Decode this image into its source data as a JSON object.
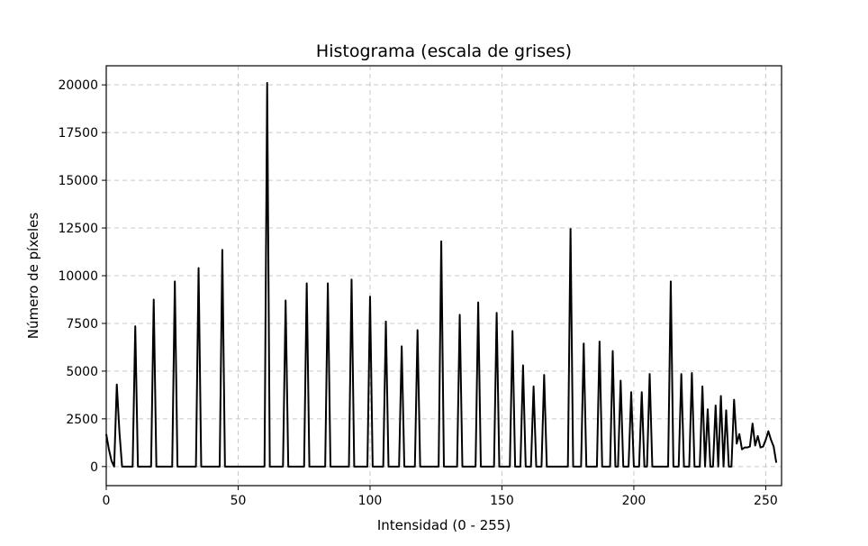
{
  "chart_data": {
    "type": "line",
    "title": "Histograma (escala de grises)",
    "xlabel": "Intensidad (0 - 255)",
    "ylabel": "Número de píxeles",
    "xlim": [
      0,
      256
    ],
    "ylim": [
      -1000,
      21000
    ],
    "x_ticks": [
      0,
      50,
      100,
      150,
      200,
      250
    ],
    "y_ticks": [
      0,
      2500,
      5000,
      7500,
      10000,
      12500,
      15000,
      17500,
      20000
    ],
    "grid": true,
    "line_color": "#000000",
    "grid_color": "#c8c8c8",
    "series": [
      {
        "points": [
          [
            0,
            1700
          ],
          [
            1,
            900
          ],
          [
            2,
            300
          ],
          [
            3,
            0
          ],
          [
            4,
            4300
          ],
          [
            5,
            1800
          ],
          [
            6,
            0
          ],
          [
            10,
            0
          ],
          [
            11,
            7350
          ],
          [
            12,
            0
          ],
          [
            17,
            0
          ],
          [
            18,
            8750
          ],
          [
            19,
            0
          ],
          [
            25,
            0
          ],
          [
            26,
            9700
          ],
          [
            27,
            0
          ],
          [
            34,
            0
          ],
          [
            35,
            10400
          ],
          [
            36,
            0
          ],
          [
            43,
            0
          ],
          [
            44,
            11350
          ],
          [
            45,
            0
          ],
          [
            60,
            0
          ],
          [
            61,
            20100
          ],
          [
            62,
            0
          ],
          [
            67,
            0
          ],
          [
            68,
            8700
          ],
          [
            69,
            0
          ],
          [
            75,
            0
          ],
          [
            76,
            9600
          ],
          [
            77,
            0
          ],
          [
            83,
            0
          ],
          [
            84,
            9600
          ],
          [
            85,
            0
          ],
          [
            92,
            0
          ],
          [
            93,
            9800
          ],
          [
            94,
            0
          ],
          [
            99,
            0
          ],
          [
            100,
            8900
          ],
          [
            101,
            0
          ],
          [
            105,
            0
          ],
          [
            106,
            7600
          ],
          [
            107,
            0
          ],
          [
            111,
            0
          ],
          [
            112,
            6300
          ],
          [
            113,
            0
          ],
          [
            117,
            0
          ],
          [
            118,
            7150
          ],
          [
            119,
            0
          ],
          [
            126,
            0
          ],
          [
            127,
            11800
          ],
          [
            128,
            0
          ],
          [
            133,
            0
          ],
          [
            134,
            7950
          ],
          [
            135,
            0
          ],
          [
            140,
            0
          ],
          [
            141,
            8600
          ],
          [
            142,
            0
          ],
          [
            147,
            0
          ],
          [
            148,
            8050
          ],
          [
            149,
            0
          ],
          [
            153,
            0
          ],
          [
            154,
            7100
          ],
          [
            155,
            0
          ],
          [
            157,
            0
          ],
          [
            158,
            5300
          ],
          [
            159,
            0
          ],
          [
            161,
            0
          ],
          [
            162,
            4200
          ],
          [
            163,
            0
          ],
          [
            165,
            0
          ],
          [
            166,
            4800
          ],
          [
            167,
            0
          ],
          [
            175,
            0
          ],
          [
            176,
            12450
          ],
          [
            177,
            0
          ],
          [
            180,
            0
          ],
          [
            181,
            6450
          ],
          [
            182,
            0
          ],
          [
            186,
            0
          ],
          [
            187,
            6550
          ],
          [
            188,
            0
          ],
          [
            191,
            0
          ],
          [
            192,
            6050
          ],
          [
            193,
            0
          ],
          [
            194,
            0
          ],
          [
            195,
            4500
          ],
          [
            196,
            0
          ],
          [
            198,
            0
          ],
          [
            199,
            3900
          ],
          [
            200,
            0
          ],
          [
            202,
            0
          ],
          [
            203,
            3900
          ],
          [
            204,
            0
          ],
          [
            205,
            0
          ],
          [
            206,
            4850
          ],
          [
            207,
            0
          ],
          [
            213,
            0
          ],
          [
            214,
            9700
          ],
          [
            215,
            0
          ],
          [
            217,
            0
          ],
          [
            218,
            4850
          ],
          [
            219,
            0
          ],
          [
            221,
            0
          ],
          [
            222,
            4900
          ],
          [
            223,
            0
          ],
          [
            225,
            0
          ],
          [
            226,
            4200
          ],
          [
            227,
            0
          ],
          [
            228,
            3000
          ],
          [
            229,
            0
          ],
          [
            230,
            0
          ],
          [
            231,
            3200
          ],
          [
            232,
            0
          ],
          [
            233,
            3700
          ],
          [
            234,
            0
          ],
          [
            235,
            2950
          ],
          [
            236,
            0
          ],
          [
            237,
            0
          ],
          [
            238,
            3500
          ],
          [
            239,
            1200
          ],
          [
            240,
            1700
          ],
          [
            241,
            900
          ],
          [
            242,
            1000
          ],
          [
            243,
            1000
          ],
          [
            244,
            1050
          ],
          [
            245,
            2250
          ],
          [
            246,
            1100
          ],
          [
            247,
            1600
          ],
          [
            248,
            1000
          ],
          [
            249,
            1050
          ],
          [
            250,
            1400
          ],
          [
            251,
            1850
          ],
          [
            252,
            1400
          ],
          [
            253,
            1050
          ],
          [
            254,
            200
          ]
        ]
      }
    ]
  }
}
